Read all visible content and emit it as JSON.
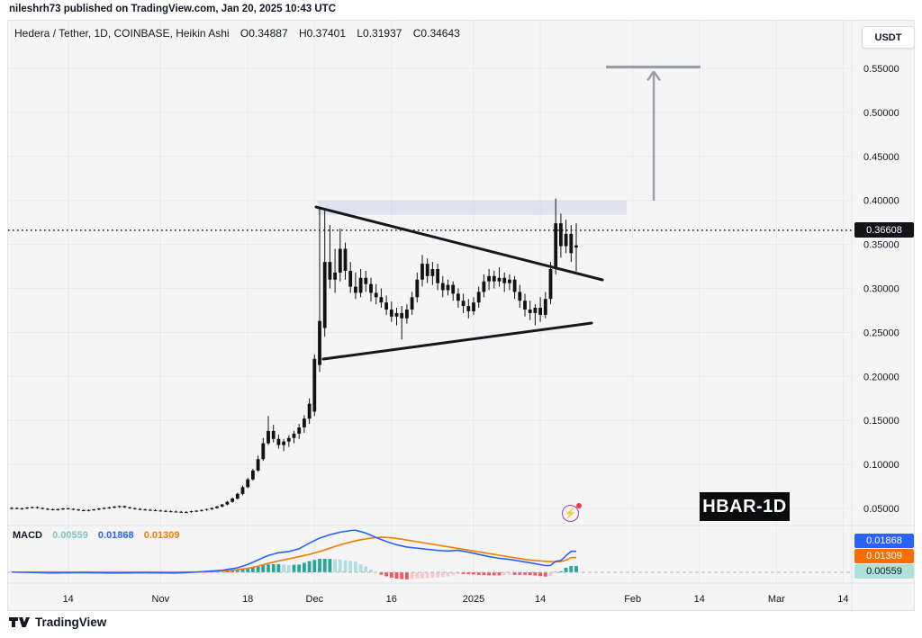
{
  "attribution": "nileshrh73 published on TradingView.com, Jan 20, 2025 10:43 UTC",
  "header": {
    "symbol_title": "Hedera / Tether, 1D, COINBASE, Heikin Ashi",
    "open": "O0.34887",
    "high": "H0.37401",
    "low": "L0.31937",
    "close": "C0.34643"
  },
  "currency_button_label": "USDT",
  "price_axis": {
    "last_price_label": "0.36608",
    "ticks": [
      {
        "label": "0.55000",
        "value": 0.55
      },
      {
        "label": "0.50000",
        "value": 0.5
      },
      {
        "label": "0.45000",
        "value": 0.45
      },
      {
        "label": "0.40000",
        "value": 0.4
      },
      {
        "label": "0.35000",
        "value": 0.35
      },
      {
        "label": "0.30000",
        "value": 0.3
      },
      {
        "label": "0.25000",
        "value": 0.25
      },
      {
        "label": "0.20000",
        "value": 0.2
      },
      {
        "label": "0.15000",
        "value": 0.15
      },
      {
        "label": "0.10000",
        "value": 0.1
      },
      {
        "label": "0.05000",
        "value": 0.05
      }
    ]
  },
  "time_axis": {
    "ticks": [
      {
        "label": "14",
        "day": 11
      },
      {
        "label": "Nov",
        "day": 29
      },
      {
        "label": "18",
        "day": 46
      },
      {
        "label": "Dec",
        "day": 59
      },
      {
        "label": "16",
        "day": 74
      },
      {
        "label": "2025",
        "day": 90
      },
      {
        "label": "14",
        "day": 103
      },
      {
        "label": "Feb",
        "day": 121
      },
      {
        "label": "14",
        "day": 134
      },
      {
        "label": "Mar",
        "day": 149
      },
      {
        "label": "14",
        "day": 162
      }
    ]
  },
  "macd_panel": {
    "label": "MACD",
    "hist_value": "0.00559",
    "macd_value": "0.01868",
    "signal_value": "0.01309"
  },
  "watermark_label": "HBAR-1D",
  "footer_logo_text": "TradingView",
  "colors": {
    "chart_bg": "#f5f5f6",
    "grid": "#e9eaee",
    "candle": "#121212",
    "trendline": "#16181c",
    "price_line": "#16181c",
    "zone_fill": "#c7cde9",
    "arrow": "#9b9ea8",
    "macd_line": "#2962ff",
    "signal_line": "#f57c00",
    "hist_pos_strong": "#26a69a",
    "hist_pos_weak": "#b2dfdb",
    "hist_neg_strong": "#f7525f",
    "hist_neg_weak": "#f8c9cd",
    "macd_badge_bg": "#2962ff",
    "signal_badge_bg": "#ff6d00",
    "hist_badge_bg": "#aee2d9",
    "hist_legend_text": "#7cc8bd",
    "axis_text": "#131722",
    "zero_line": "#b2b5be",
    "badge_bg": "#101318"
  },
  "chart_data": {
    "type": "candlestick+macd",
    "symbol": "HBAR/USDT",
    "exchange": "COINBASE",
    "interval": "1D",
    "candle_style": "Heikin Ashi",
    "last_ohlc": {
      "open": 0.34887,
      "high": 0.37401,
      "low": 0.31937,
      "close": 0.34643
    },
    "price_line_value": 0.36608,
    "ylim": [
      0.03,
      0.6
    ],
    "visible_range": [
      "2024-10-03",
      "2025-03-16"
    ],
    "candle_start_date": "2024-10-03",
    "candles_ohlc": [
      [
        0.05,
        0.0515,
        0.0488,
        0.0505
      ],
      [
        0.0505,
        0.0512,
        0.049,
        0.0496
      ],
      [
        0.0496,
        0.0508,
        0.0485,
        0.0502
      ],
      [
        0.0502,
        0.0515,
        0.0492,
        0.051
      ],
      [
        0.051,
        0.0522,
        0.05,
        0.0515
      ],
      [
        0.0515,
        0.052,
        0.0498,
        0.0505
      ],
      [
        0.0505,
        0.0512,
        0.0488,
        0.0495
      ],
      [
        0.0495,
        0.0505,
        0.0482,
        0.049
      ],
      [
        0.049,
        0.05,
        0.0478,
        0.0486
      ],
      [
        0.0486,
        0.0498,
        0.0475,
        0.0492
      ],
      [
        0.0492,
        0.0505,
        0.0482,
        0.05
      ],
      [
        0.05,
        0.051,
        0.0488,
        0.0495
      ],
      [
        0.0495,
        0.0502,
        0.048,
        0.0488
      ],
      [
        0.0488,
        0.0495,
        0.0472,
        0.048
      ],
      [
        0.048,
        0.049,
        0.0468,
        0.0475
      ],
      [
        0.0475,
        0.0488,
        0.0465,
        0.0482
      ],
      [
        0.0482,
        0.0495,
        0.0472,
        0.049
      ],
      [
        0.049,
        0.0505,
        0.048,
        0.0498
      ],
      [
        0.0498,
        0.0512,
        0.0488,
        0.0506
      ],
      [
        0.0506,
        0.052,
        0.0495,
        0.0512
      ],
      [
        0.0512,
        0.0528,
        0.05,
        0.052
      ],
      [
        0.052,
        0.0535,
        0.0508,
        0.0526
      ],
      [
        0.0526,
        0.0532,
        0.0505,
        0.0512
      ],
      [
        0.0512,
        0.052,
        0.0495,
        0.0502
      ],
      [
        0.0502,
        0.051,
        0.0486,
        0.0494
      ],
      [
        0.0494,
        0.0504,
        0.048,
        0.0488
      ],
      [
        0.0488,
        0.0498,
        0.0476,
        0.0484
      ],
      [
        0.0484,
        0.0494,
        0.0472,
        0.048
      ],
      [
        0.048,
        0.049,
        0.0468,
        0.0476
      ],
      [
        0.0476,
        0.0486,
        0.0464,
        0.0472
      ],
      [
        0.0472,
        0.0482,
        0.046,
        0.0468
      ],
      [
        0.0468,
        0.0478,
        0.0456,
        0.0464
      ],
      [
        0.0464,
        0.0476,
        0.0454,
        0.0462
      ],
      [
        0.0462,
        0.0472,
        0.045,
        0.0458
      ],
      [
        0.0458,
        0.047,
        0.0448,
        0.0456
      ],
      [
        0.0462,
        0.0474,
        0.0452,
        0.0468
      ],
      [
        0.0468,
        0.048,
        0.0458,
        0.0474
      ],
      [
        0.0474,
        0.0488,
        0.0464,
        0.0482
      ],
      [
        0.0482,
        0.0498,
        0.0472,
        0.0492
      ],
      [
        0.0492,
        0.0512,
        0.0482,
        0.0505
      ],
      [
        0.0505,
        0.053,
        0.0495,
        0.0522
      ],
      [
        0.0522,
        0.0552,
        0.0512,
        0.0545
      ],
      [
        0.0545,
        0.0585,
        0.0535,
        0.0575
      ],
      [
        0.0575,
        0.0625,
        0.0565,
        0.0612
      ],
      [
        0.0612,
        0.068,
        0.06,
        0.0665
      ],
      [
        0.0665,
        0.076,
        0.065,
        0.0742
      ],
      [
        0.0742,
        0.085,
        0.073,
        0.083
      ],
      [
        0.083,
        0.095,
        0.0815,
        0.093
      ],
      [
        0.093,
        0.11,
        0.0915,
        0.106
      ],
      [
        0.106,
        0.13,
        0.104,
        0.124
      ],
      [
        0.124,
        0.155,
        0.122,
        0.138
      ],
      [
        0.138,
        0.145,
        0.125,
        0.129
      ],
      [
        0.129,
        0.134,
        0.118,
        0.122
      ],
      [
        0.122,
        0.129,
        0.115,
        0.126
      ],
      [
        0.126,
        0.133,
        0.12,
        0.13
      ],
      [
        0.13,
        0.138,
        0.124,
        0.135
      ],
      [
        0.135,
        0.146,
        0.129,
        0.142
      ],
      [
        0.142,
        0.156,
        0.136,
        0.152
      ],
      [
        0.152,
        0.175,
        0.146,
        0.169
      ],
      [
        0.16,
        0.225,
        0.155,
        0.22
      ],
      [
        0.213,
        0.392,
        0.205,
        0.263
      ],
      [
        0.255,
        0.39,
        0.245,
        0.33
      ],
      [
        0.33,
        0.372,
        0.3,
        0.31
      ],
      [
        0.31,
        0.345,
        0.295,
        0.318
      ],
      [
        0.318,
        0.368,
        0.308,
        0.345
      ],
      [
        0.345,
        0.352,
        0.31,
        0.32
      ],
      [
        0.32,
        0.33,
        0.295,
        0.302
      ],
      [
        0.302,
        0.318,
        0.288,
        0.295
      ],
      [
        0.295,
        0.322,
        0.29,
        0.312
      ],
      [
        0.312,
        0.32,
        0.296,
        0.305
      ],
      [
        0.305,
        0.312,
        0.285,
        0.295
      ],
      [
        0.295,
        0.305,
        0.282,
        0.29
      ],
      [
        0.29,
        0.3,
        0.278,
        0.284
      ],
      [
        0.284,
        0.292,
        0.27,
        0.276
      ],
      [
        0.276,
        0.285,
        0.262,
        0.268
      ],
      [
        0.268,
        0.278,
        0.258,
        0.272
      ],
      [
        0.272,
        0.28,
        0.242,
        0.266
      ],
      [
        0.266,
        0.282,
        0.26,
        0.276
      ],
      [
        0.276,
        0.296,
        0.27,
        0.29
      ],
      [
        0.29,
        0.318,
        0.284,
        0.31
      ],
      [
        0.31,
        0.338,
        0.302,
        0.328
      ],
      [
        0.328,
        0.334,
        0.306,
        0.314
      ],
      [
        0.314,
        0.33,
        0.304,
        0.322
      ],
      [
        0.322,
        0.328,
        0.298,
        0.306
      ],
      [
        0.306,
        0.314,
        0.29,
        0.298
      ],
      [
        0.298,
        0.31,
        0.292,
        0.304
      ],
      [
        0.304,
        0.308,
        0.286,
        0.294
      ],
      [
        0.294,
        0.3,
        0.278,
        0.286
      ],
      [
        0.286,
        0.294,
        0.272,
        0.28
      ],
      [
        0.28,
        0.288,
        0.266,
        0.274
      ],
      [
        0.274,
        0.29,
        0.27,
        0.284
      ],
      [
        0.284,
        0.302,
        0.278,
        0.296
      ],
      [
        0.296,
        0.316,
        0.29,
        0.308
      ],
      [
        0.308,
        0.322,
        0.298,
        0.314
      ],
      [
        0.314,
        0.32,
        0.3,
        0.308
      ],
      [
        0.308,
        0.324,
        0.302,
        0.312
      ],
      [
        0.312,
        0.318,
        0.296,
        0.306
      ],
      [
        0.306,
        0.316,
        0.298,
        0.31
      ],
      [
        0.31,
        0.314,
        0.288,
        0.296
      ],
      [
        0.296,
        0.304,
        0.278,
        0.286
      ],
      [
        0.286,
        0.294,
        0.268,
        0.276
      ],
      [
        0.276,
        0.286,
        0.264,
        0.272
      ],
      [
        0.272,
        0.282,
        0.258,
        0.278
      ],
      [
        0.278,
        0.29,
        0.262,
        0.27
      ],
      [
        0.27,
        0.296,
        0.266,
        0.288
      ],
      [
        0.288,
        0.33,
        0.282,
        0.322
      ],
      [
        0.322,
        0.402,
        0.316,
        0.374
      ],
      [
        0.374,
        0.385,
        0.335,
        0.348
      ],
      [
        0.348,
        0.378,
        0.34,
        0.362
      ],
      [
        0.362,
        0.372,
        0.33,
        0.34
      ],
      [
        0.34887,
        0.37401,
        0.31937,
        0.34643
      ]
    ],
    "trendlines": [
      {
        "name": "descending-resistance",
        "from_day": 59.3,
        "from_price": 0.3925,
        "to_day": 115.1,
        "to_price": 0.3097
      },
      {
        "name": "ascending-support",
        "from_day": 60.7,
        "from_price": 0.2197,
        "to_day": 113.0,
        "to_price": 0.2606
      }
    ],
    "resistance_zone": {
      "from_day": 59.6,
      "to_day": 119.8,
      "top_price": 0.3997,
      "bottom_price": 0.3835
    },
    "target_arrow": {
      "day": 125.1,
      "from_price": 0.3997,
      "to_price": 0.5465,
      "cap_price": 0.5516,
      "cap_from_day": 115.8,
      "cap_to_day": 134.2
    },
    "macd": {
      "macd_keypoints": [
        [
          0,
          0.0002
        ],
        [
          8,
          -0.0006
        ],
        [
          14,
          -0.0003
        ],
        [
          20,
          -0.0007
        ],
        [
          26,
          -0.0004
        ],
        [
          32,
          -0.0007
        ],
        [
          37,
          0.0005
        ],
        [
          41,
          0.0018
        ],
        [
          44,
          0.004
        ],
        [
          46,
          0.007
        ],
        [
          48,
          0.011
        ],
        [
          50,
          0.015
        ],
        [
          52,
          0.0175
        ],
        [
          54,
          0.0185
        ],
        [
          56,
          0.021
        ],
        [
          58,
          0.026
        ],
        [
          60,
          0.0305
        ],
        [
          62,
          0.0335
        ],
        [
          64,
          0.0358
        ],
        [
          66,
          0.0372
        ],
        [
          67,
          0.0375
        ],
        [
          69,
          0.035
        ],
        [
          71,
          0.031
        ],
        [
          73,
          0.0275
        ],
        [
          75,
          0.0245
        ],
        [
          77,
          0.0225
        ],
        [
          79,
          0.0215
        ],
        [
          81,
          0.0205
        ],
        [
          83,
          0.0195
        ],
        [
          85,
          0.019
        ],
        [
          87,
          0.0196
        ],
        [
          89,
          0.018
        ],
        [
          91,
          0.016
        ],
        [
          93,
          0.014
        ],
        [
          95,
          0.0125
        ],
        [
          97,
          0.0115
        ],
        [
          99,
          0.01
        ],
        [
          101,
          0.0085
        ],
        [
          103,
          0.0068
        ],
        [
          104,
          0.006
        ],
        [
          105,
          0.0062
        ],
        [
          106,
          0.0098
        ],
        [
          107,
          0.0105
        ],
        [
          108,
          0.0148
        ],
        [
          109,
          0.01868
        ]
      ],
      "signal_keypoints": [
        [
          0,
          0.0002
        ],
        [
          36,
          0.0003
        ],
        [
          40,
          0.0008
        ],
        [
          43,
          0.0018
        ],
        [
          46,
          0.0035
        ],
        [
          48,
          0.0055
        ],
        [
          50,
          0.008
        ],
        [
          52,
          0.0102
        ],
        [
          54,
          0.012
        ],
        [
          56,
          0.014
        ],
        [
          58,
          0.016
        ],
        [
          60,
          0.0185
        ],
        [
          62,
          0.0215
        ],
        [
          64,
          0.0245
        ],
        [
          66,
          0.027
        ],
        [
          68,
          0.029
        ],
        [
          70,
          0.0305
        ],
        [
          72,
          0.0313
        ],
        [
          74,
          0.0308
        ],
        [
          76,
          0.0295
        ],
        [
          78,
          0.028
        ],
        [
          80,
          0.0265
        ],
        [
          82,
          0.025
        ],
        [
          84,
          0.0235
        ],
        [
          86,
          0.022
        ],
        [
          88,
          0.0205
        ],
        [
          90,
          0.019
        ],
        [
          92,
          0.0175
        ],
        [
          94,
          0.016
        ],
        [
          96,
          0.0145
        ],
        [
          98,
          0.013
        ],
        [
          100,
          0.0115
        ],
        [
          102,
          0.0105
        ],
        [
          104,
          0.0098
        ],
        [
          106,
          0.0094
        ],
        [
          107,
          0.0096
        ],
        [
          108,
          0.0108
        ],
        [
          109,
          0.01309
        ]
      ],
      "last_values": {
        "macd": 0.01868,
        "signal": 0.01309,
        "histogram": 0.00559
      }
    }
  }
}
